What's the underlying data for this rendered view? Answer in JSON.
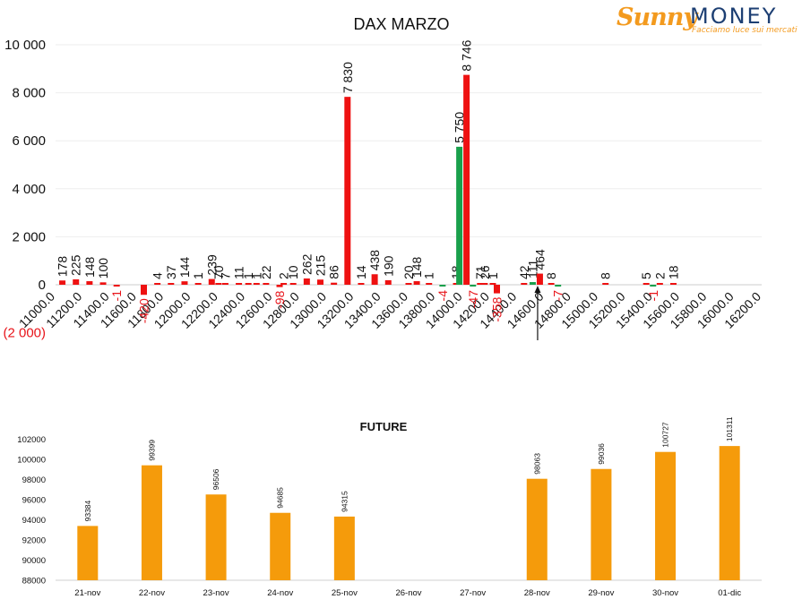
{
  "logo": {
    "brand_a": "Sunny",
    "brand_b": "MONEY",
    "tagline": "Facciamo luce sui mercati"
  },
  "chart_data": [
    {
      "type": "bar",
      "title": "DAX MARZO",
      "xlabel": "",
      "ylabel": "",
      "ylim": [
        -2000,
        10000
      ],
      "y_ticks": [
        -2000,
        0,
        2000,
        4000,
        6000,
        8000,
        10000
      ],
      "y_tick_labels": [
        "(2 000)",
        "0",
        "2 000",
        "4 000",
        "6 000",
        "8 000",
        "10 000"
      ],
      "x_range": [
        11000,
        16200
      ],
      "x_ticks": [
        "11000.0",
        "11200.0",
        "11400.0",
        "11600.0",
        "11800.0",
        "12000.0",
        "12200.0",
        "12400.0",
        "12600.0",
        "12800.0",
        "13000.0",
        "13200.0",
        "13400.0",
        "13600.0",
        "13800.0",
        "14000.0",
        "14200.0",
        "14400.0",
        "14600.0",
        "14800.0",
        "15000.0",
        "15200.0",
        "15400.0",
        "15600.0",
        "15800.0",
        "16000.0",
        "16200.0"
      ],
      "grid": true,
      "legend": "none",
      "series_colors": {
        "call": "#19a04b",
        "put": "#ee1111"
      },
      "marker_strike": 14550,
      "strikes": [
        {
          "strike": 11050,
          "put": 178,
          "put_label": "178"
        },
        {
          "strike": 11150,
          "put": 225,
          "put_label": "225"
        },
        {
          "strike": 11250,
          "put": 148,
          "put_label": "148"
        },
        {
          "strike": 11350,
          "put": 100,
          "put_label": "100"
        },
        {
          "strike": 11450,
          "put": -1,
          "put_label": "-1"
        },
        {
          "strike": 11650,
          "put": -420,
          "put_label": "-420"
        },
        {
          "strike": 11750,
          "put": 4,
          "put_label": "4"
        },
        {
          "strike": 11850,
          "put": 37,
          "put_label": "37"
        },
        {
          "strike": 11950,
          "put": 144,
          "put_label": "144"
        },
        {
          "strike": 12050,
          "put": 1,
          "put_label": "1"
        },
        {
          "strike": 12150,
          "put": 239,
          "put_label": "239"
        },
        {
          "strike": 12200,
          "put": 70,
          "put_label": "70"
        },
        {
          "strike": 12250,
          "put": 7,
          "put_label": "7"
        },
        {
          "strike": 12350,
          "put": 11,
          "put_label": "11"
        },
        {
          "strike": 12420,
          "put": 1,
          "put_label": "1"
        },
        {
          "strike": 12480,
          "put": 1,
          "put_label": "1"
        },
        {
          "strike": 12550,
          "put": 22,
          "put_label": "22"
        },
        {
          "strike": 12650,
          "put": -98,
          "put_label": "-98"
        },
        {
          "strike": 12680,
          "put": 2,
          "put_label": "2"
        },
        {
          "strike": 12750,
          "put": 10,
          "put_label": "10"
        },
        {
          "strike": 12850,
          "put": 262,
          "put_label": "262"
        },
        {
          "strike": 12950,
          "put": 215,
          "put_label": "215"
        },
        {
          "strike": 13050,
          "put": 86,
          "put_label": "86"
        },
        {
          "strike": 13150,
          "put": 7830,
          "put_label": "7 830"
        },
        {
          "strike": 13250,
          "put": 14,
          "put_label": "14"
        },
        {
          "strike": 13350,
          "put": 438,
          "put_label": "438"
        },
        {
          "strike": 13450,
          "put": 190,
          "put_label": "190"
        },
        {
          "strike": 13600,
          "put": 20,
          "put_label": "20"
        },
        {
          "strike": 13660,
          "put": 148,
          "put_label": "148"
        },
        {
          "strike": 13750,
          "put": 1,
          "put_label": "1"
        },
        {
          "strike": 13850,
          "call": -4,
          "call_label": "-4"
        },
        {
          "strike": 13950,
          "put": 18,
          "put_label": "18"
        },
        {
          "strike": 14000,
          "call": 5750,
          "call_label": "5 750",
          "put": 8746,
          "put_label": "8 746"
        },
        {
          "strike": 14100,
          "call": -47,
          "call_label": "-47",
          "put": 71,
          "put_label": "71"
        },
        {
          "strike": 14160,
          "put": 26,
          "put_label": "26"
        },
        {
          "strike": 14220,
          "put": 1,
          "put_label": "1"
        },
        {
          "strike": 14250,
          "put": -358,
          "put_label": "-358"
        },
        {
          "strike": 14450,
          "put": 42,
          "put_label": "42"
        },
        {
          "strike": 14540,
          "call": 111,
          "call_label": "111",
          "put": 464,
          "put_label": "464"
        },
        {
          "strike": 14650,
          "put": 8,
          "put_label": "8"
        },
        {
          "strike": 14700,
          "call": -7,
          "call_label": "-7"
        },
        {
          "strike": 15050,
          "put": 8,
          "put_label": "8"
        },
        {
          "strike": 15350,
          "put": 5,
          "put_label": "5"
        },
        {
          "strike": 15400,
          "call": -1,
          "call_label": "-1"
        },
        {
          "strike": 15450,
          "put": 2,
          "put_label": "2"
        },
        {
          "strike": 15550,
          "put": 18,
          "put_label": "18"
        }
      ]
    },
    {
      "type": "bar",
      "title": "FUTURE",
      "xlabel": "",
      "ylabel": "",
      "ylim": [
        88000,
        102000
      ],
      "y_ticks": [
        88000,
        90000,
        92000,
        94000,
        96000,
        98000,
        100000,
        102000
      ],
      "y_tick_labels": [
        "88000",
        "90000",
        "92000",
        "94000",
        "96000",
        "98000",
        "100000",
        "102000"
      ],
      "grid": false,
      "legend": "none",
      "color": "#f59b0b",
      "categories": [
        "21-nov",
        "22-nov",
        "23-nov",
        "24-nov",
        "25-nov",
        "26-nov",
        "27-nov",
        "28-nov",
        "29-nov",
        "30-nov",
        "01-dic"
      ],
      "values": [
        93384,
        99399,
        96506,
        94685,
        94315,
        null,
        null,
        98063,
        99036,
        100727,
        101311
      ]
    }
  ]
}
